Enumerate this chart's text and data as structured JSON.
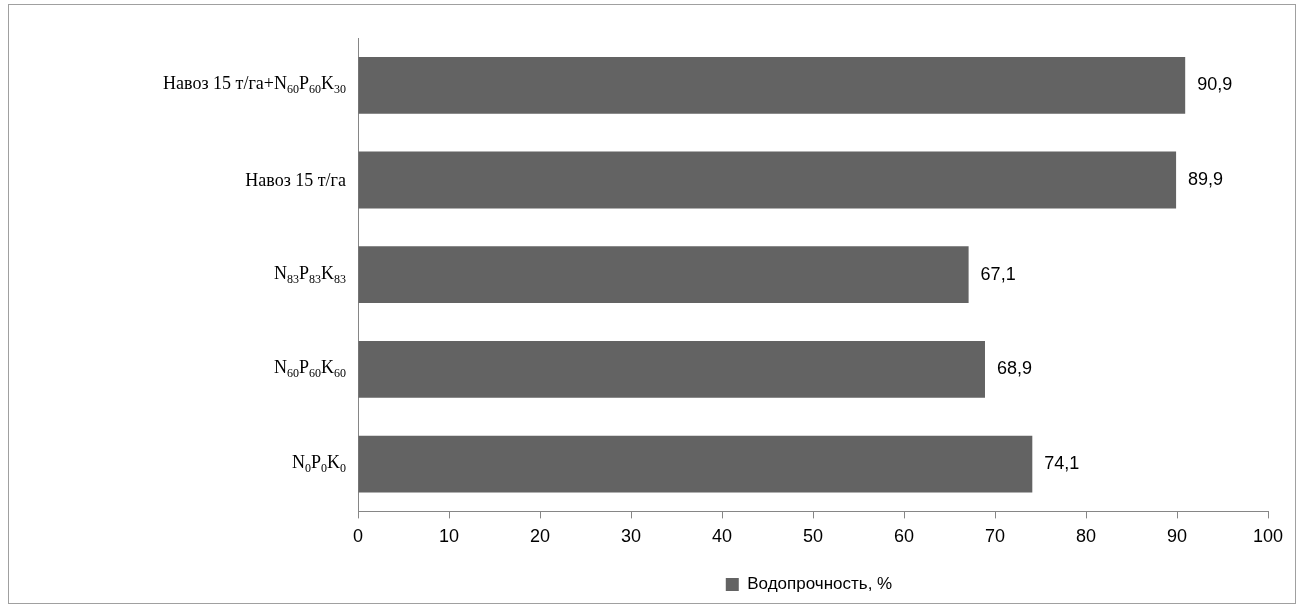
{
  "chart_data": {
    "type": "bar",
    "orientation": "horizontal",
    "categories": [
      "Навоз 15 т/га+N$_{60}$P$_{60}$K$_{30}$",
      "Навоз 15 т/га",
      "N$_{83}$P$_{83}$K$_{83}$",
      "N$_{60}$P$_{60}$K$_{60}$",
      "N$_{0}$P$_{0}$K$_{0}$"
    ],
    "series": [
      {
        "name": "Водопрочность, %",
        "color": "#636363",
        "values": [
          90.9,
          89.9,
          67.1,
          68.9,
          74.1
        ],
        "value_labels": [
          "90,9",
          "89,9",
          "67,1",
          "68,9",
          "74,1"
        ]
      }
    ],
    "xlim": [
      0,
      100
    ],
    "xticks": [
      0,
      10,
      20,
      30,
      40,
      50,
      60,
      70,
      80,
      90,
      100
    ],
    "grid": false,
    "legend": "bottom"
  }
}
